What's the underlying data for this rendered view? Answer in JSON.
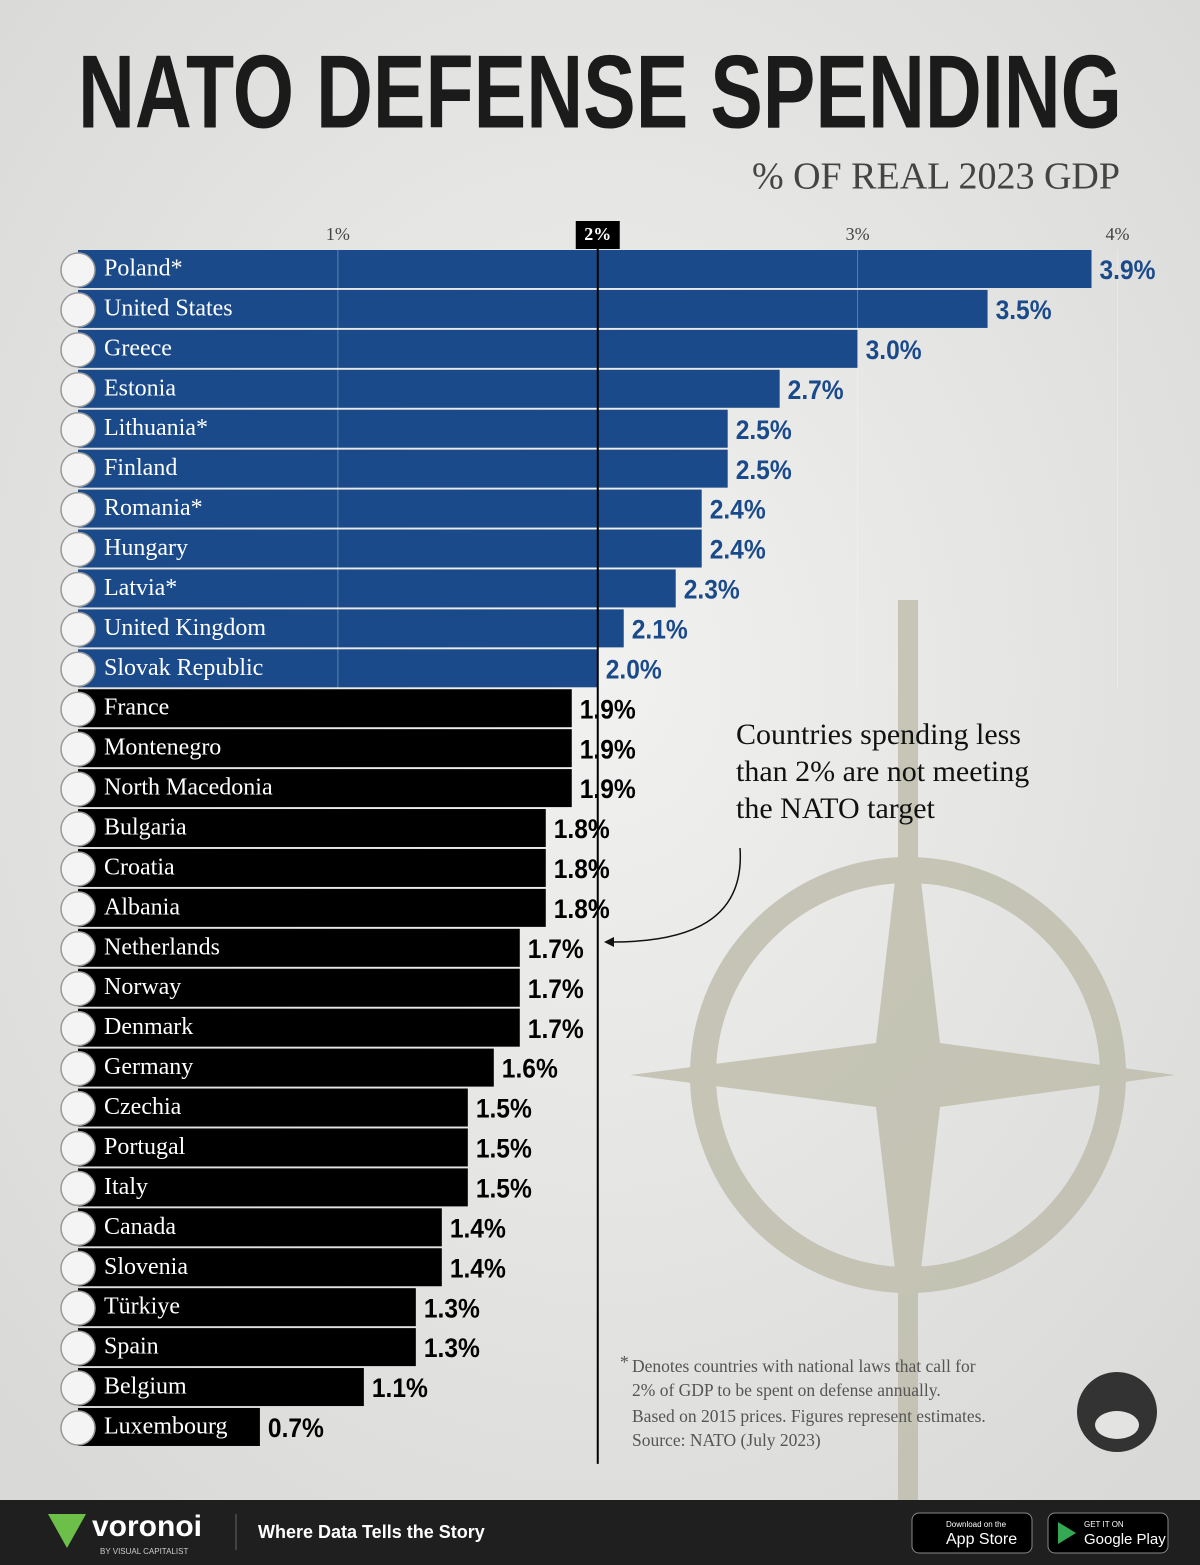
{
  "chart_data": {
    "type": "bar",
    "orientation": "horizontal",
    "title": "NATO DEFENSE SPENDING",
    "subtitle": "% OF REAL 2023 GDP",
    "categories": [
      "Poland*",
      "United States",
      "Greece",
      "Estonia",
      "Lithuania*",
      "Finland",
      "Romania*",
      "Hungary",
      "Latvia*",
      "United Kingdom",
      "Slovak Republic",
      "France",
      "Montenegro",
      "North Macedonia",
      "Bulgaria",
      "Croatia",
      "Albania",
      "Netherlands",
      "Norway",
      "Denmark",
      "Germany",
      "Czechia",
      "Portugal",
      "Italy",
      "Canada",
      "Slovenia",
      "Türkiye",
      "Spain",
      "Belgium",
      "Luxembourg"
    ],
    "values": [
      3.9,
      3.5,
      3.0,
      2.7,
      2.5,
      2.5,
      2.4,
      2.4,
      2.3,
      2.1,
      2.0,
      1.9,
      1.9,
      1.9,
      1.8,
      1.8,
      1.8,
      1.7,
      1.7,
      1.7,
      1.6,
      1.5,
      1.5,
      1.5,
      1.4,
      1.4,
      1.3,
      1.3,
      1.1,
      0.7
    ],
    "value_labels": [
      "3.9%",
      "3.5%",
      "3.0%",
      "2.7%",
      "2.5%",
      "2.5%",
      "2.4%",
      "2.4%",
      "2.3%",
      "2.1%",
      "2.0%",
      "1.9%",
      "1.9%",
      "1.9%",
      "1.8%",
      "1.8%",
      "1.8%",
      "1.7%",
      "1.7%",
      "1.7%",
      "1.6%",
      "1.5%",
      "1.5%",
      "1.5%",
      "1.4%",
      "1.4%",
      "1.3%",
      "1.3%",
      "1.1%",
      "0.7%"
    ],
    "colors": [
      "#1a4a8a",
      "#1a4a8a",
      "#1a4a8a",
      "#1a4a8a",
      "#1a4a8a",
      "#1a4a8a",
      "#1a4a8a",
      "#1a4a8a",
      "#1a4a8a",
      "#1a4a8a",
      "#1a4a8a",
      "#000000",
      "#000000",
      "#000000",
      "#000000",
      "#000000",
      "#000000",
      "#000000",
      "#000000",
      "#000000",
      "#000000",
      "#000000",
      "#000000",
      "#000000",
      "#000000",
      "#000000",
      "#000000",
      "#000000",
      "#000000",
      "#000000"
    ],
    "xlim": [
      0,
      4
    ],
    "xticks": [
      {
        "value": 1,
        "label": "1%"
      },
      {
        "value": 2,
        "label": "2%"
      },
      {
        "value": 3,
        "label": "3%"
      },
      {
        "value": 4,
        "label": "4%"
      }
    ],
    "reference_line": 2,
    "grid": true,
    "annotation": [
      "Countries spending less",
      "than 2% are not meeting",
      "the NATO target"
    ],
    "footnote_mark": "*",
    "footnote": [
      "Denotes countries with national laws that call for",
      "2% of GDP to be spent on defense annually.",
      "Based on 2015 prices. Figures represent estimates.",
      "Source: NATO (July 2023)"
    ]
  },
  "footer": {
    "brand": "voronoi",
    "brand_sub": "BY VISUAL CAPITALIST",
    "tagline": "Where Data Tells the Story",
    "app_store_small": "Download on the",
    "app_store": "App Store",
    "google_small": "GET IT ON",
    "google": "Google Play"
  }
}
